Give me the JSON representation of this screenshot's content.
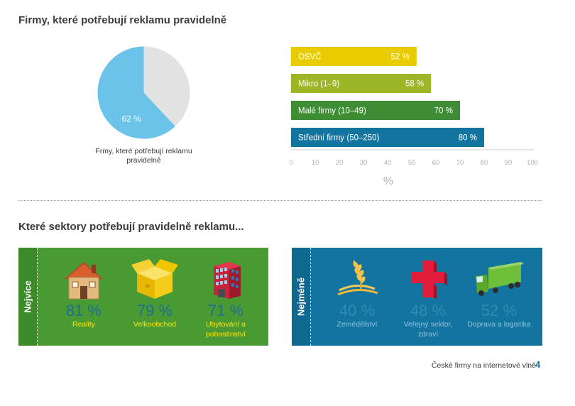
{
  "titles": {
    "section1": "Firmy, které potřebují reklamu pravidelně",
    "section2": "Které sektory potřebují pravidelně reklamu..."
  },
  "chart_data": [
    {
      "type": "pie",
      "slices": [
        {
          "value": 62,
          "label": "62 %",
          "color": "#6cc3ea"
        },
        {
          "value": 38,
          "label": "",
          "color": "#e2e2e2"
        }
      ],
      "caption": "Frmy, které potřebují reklamu pravidelně"
    },
    {
      "type": "bar",
      "orientation": "horizontal",
      "categories": [
        "OSVČ",
        "Mikro (1–9)",
        "Malé firmy  (10–49)",
        "Střední firmy (50–250)"
      ],
      "values": [
        52,
        58,
        70,
        80
      ],
      "value_labels": [
        "52 %",
        "58 %",
        "70 %",
        "80 %"
      ],
      "colors": [
        "#e9cc00",
        "#9cb626",
        "#3e8c34",
        "#13749f"
      ],
      "xlim": [
        0,
        100
      ],
      "xticks": [
        0,
        10,
        20,
        30,
        40,
        50,
        60,
        70,
        80,
        90,
        100
      ],
      "xlabel": "%"
    }
  ],
  "panels": {
    "most": {
      "label": "Nejvíce",
      "sectors": [
        {
          "pct": "81 %",
          "name": "Reality",
          "icon": "house-icon"
        },
        {
          "pct": "79 %",
          "name": "Velkoobchod",
          "icon": "box-icon"
        },
        {
          "pct": "71 %",
          "name": "Ubytování a pohostinství",
          "icon": "building-icon"
        }
      ]
    },
    "least": {
      "label": "Nejméně",
      "sectors": [
        {
          "pct": "40 %",
          "name": "Zemědělství",
          "icon": "wheat-icon"
        },
        {
          "pct": "48 %",
          "name": "Veřejný sektor, zdraví",
          "icon": "red-cross-icon"
        },
        {
          "pct": "52 %",
          "name": "Doprava a logistika",
          "icon": "truck-icon"
        }
      ]
    }
  },
  "footer": {
    "text": "České firmy na internetové vlně",
    "page": "4"
  }
}
